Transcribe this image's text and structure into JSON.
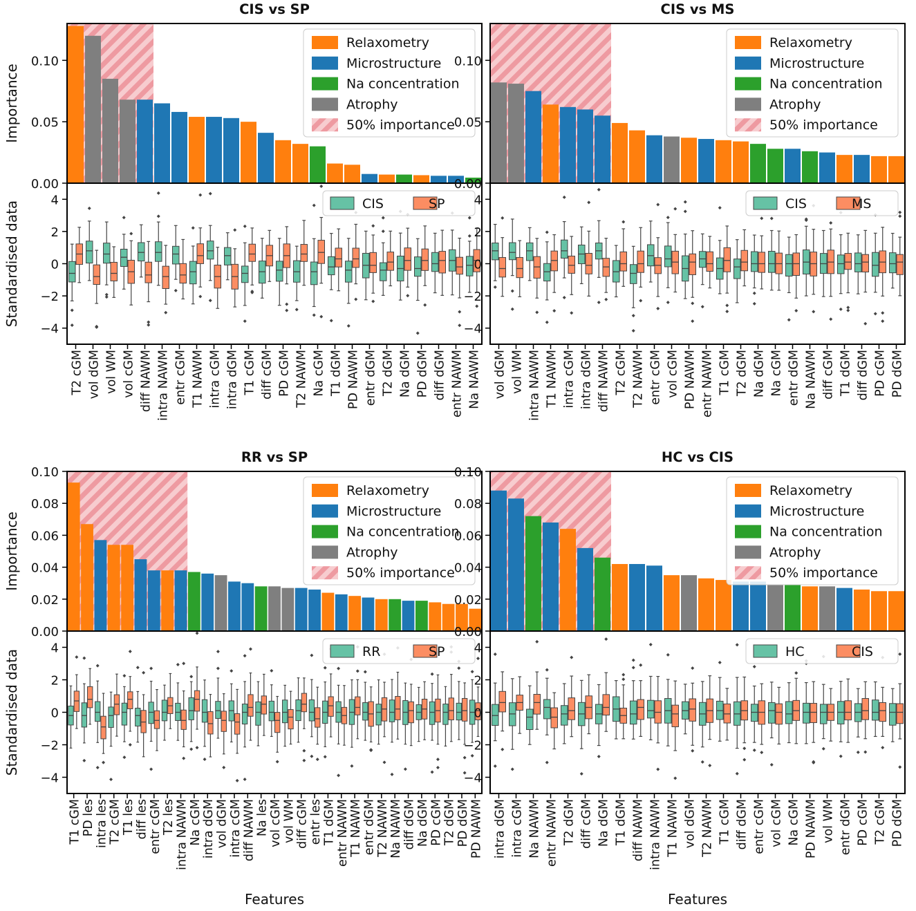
{
  "colors": {
    "Relaxometry": "#ff7f0e",
    "Microstructure": "#1f77b4",
    "Na concentration": "#2ca02c",
    "Atrophy": "#7f7f7f",
    "hatch": "#f08080",
    "box_group_a": "#66c2a5",
    "box_group_b": "#fc8d62"
  },
  "category_codes": {
    "R": "Relaxometry",
    "M": "Microstructure",
    "N": "Na concentration",
    "A": "Atrophy"
  },
  "legend_labels": [
    "Relaxometry",
    "Microstructure",
    "Na concentration",
    "Atrophy",
    "50% importance"
  ],
  "importance_ylabel": "Importance",
  "box_ylabel": "Standardised data",
  "xlabel": "Features",
  "chart_data": [
    {
      "type": "bar",
      "title": "CIS vs SP",
      "groups": [
        "CIS",
        "SP"
      ],
      "ylim": [
        0,
        0.13
      ],
      "yticks": [
        0.0,
        0.05,
        0.1
      ],
      "categories": [
        "T2 cGM",
        "vol dGM",
        "vol WM",
        "vol cGM",
        "diff NAWM",
        "intra NAWM",
        "entr cGM",
        "T1 NAWM",
        "intra cGM",
        "intra dGM",
        "T1 cGM",
        "diff cGM",
        "PD cGM",
        "T2 NAWM",
        "Na cGM",
        "T1 dGM",
        "PD NAWM",
        "entr dGM",
        "T2 dGM",
        "Na dGM",
        "PD dGM",
        "diff dGM",
        "entr NAWM",
        "Na NAWM"
      ],
      "feature_types": "RAAAMMMRMMRMRRNRRMRNRMMN",
      "values": [
        0.128,
        0.12,
        0.085,
        0.068,
        0.068,
        0.065,
        0.058,
        0.054,
        0.054,
        0.053,
        0.05,
        0.041,
        0.035,
        0.032,
        0.03,
        0.016,
        0.015,
        0.0075,
        0.007,
        0.007,
        0.0065,
        0.006,
        0.006,
        0.0045
      ],
      "half_importance_features": 5,
      "box_ylim": [
        -5,
        5
      ],
      "box_yticks": [
        -4,
        -2,
        0,
        2,
        4
      ],
      "medians_a": [
        -0.6,
        0.8,
        0.6,
        0.4,
        0.7,
        0.7,
        0.6,
        -0.5,
        0.8,
        0.5,
        -0.6,
        -0.5,
        -0.4,
        -0.5,
        -0.5,
        -0.2,
        -0.4,
        -0.1,
        -0.4,
        -0.3,
        -0.3,
        0.0,
        0.2,
        -0.1
      ],
      "medians_b": [
        0.6,
        -0.8,
        -0.6,
        -0.5,
        -0.7,
        -0.8,
        -0.7,
        0.5,
        -0.8,
        -0.8,
        0.6,
        0.5,
        0.5,
        0.6,
        0.7,
        0.3,
        0.3,
        -0.1,
        0.1,
        0.2,
        0.2,
        0.2,
        -0.2,
        0.2
      ]
    },
    {
      "type": "bar",
      "title": "CIS vs MS",
      "groups": [
        "CIS",
        "MS"
      ],
      "ylim": [
        0,
        0.13
      ],
      "yticks": [
        0.0,
        0.05,
        0.1
      ],
      "categories": [
        "vol dGM",
        "vol WM",
        "intra NAWM",
        "T1 NAWM",
        "intra cGM",
        "intra dGM",
        "diff NAWM",
        "T2 cGM",
        "T2 NAWM",
        "entr cGM",
        "vol cGM",
        "PD NAWM",
        "entr NAWM",
        "T1 cGM",
        "T2 dGM",
        "Na dGM",
        "Na cGM",
        "entr dGM",
        "Na NAWM",
        "diff cGM",
        "T1 dGM",
        "diff dGM",
        "PD cGM",
        "PD dGM"
      ],
      "feature_types": "AAMRMMMRRMARMRRNNMNMRMRR",
      "values": [
        0.082,
        0.081,
        0.075,
        0.064,
        0.062,
        0.06,
        0.055,
        0.049,
        0.043,
        0.039,
        0.038,
        0.037,
        0.036,
        0.035,
        0.034,
        0.032,
        0.028,
        0.028,
        0.026,
        0.025,
        0.023,
        0.023,
        0.022,
        0.022
      ],
      "half_importance_features": 7,
      "box_ylim": [
        -5,
        5
      ],
      "box_yticks": [
        -4,
        -2,
        0,
        2,
        4
      ],
      "medians_a": [
        0.8,
        0.7,
        0.8,
        -0.5,
        0.8,
        0.6,
        0.8,
        -0.5,
        -0.6,
        0.5,
        0.3,
        -0.3,
        0.3,
        -0.3,
        -0.2,
        0.0,
        0.0,
        0.0,
        0.1,
        0.0,
        0.0,
        0.0,
        -0.1,
        0.0
      ],
      "medians_b": [
        -0.3,
        -0.3,
        -0.2,
        0.2,
        -0.1,
        -0.1,
        -0.2,
        0.0,
        0.0,
        -0.1,
        0.1,
        0.1,
        0.0,
        0.2,
        0.1,
        0.0,
        0.0,
        0.0,
        0.0,
        0.1,
        0.1,
        0.1,
        0.1,
        0.1
      ]
    },
    {
      "type": "bar",
      "title": "RR vs SP",
      "groups": [
        "RR",
        "SP"
      ],
      "ylim": [
        0,
        0.1
      ],
      "yticks": [
        0.0,
        0.02,
        0.04,
        0.06,
        0.08,
        0.1
      ],
      "categories": [
        "T1 cGM",
        "PD les",
        "intra les",
        "T2 cGM",
        "T1 les",
        "diff les",
        "entr cGM",
        "T2 les",
        "intra NAWM",
        "Na cGM",
        "intra dGM",
        "vol dGM",
        "intra cGM",
        "diff NAWM",
        "Na les",
        "vol cGM",
        "vol WM",
        "diff cGM",
        "entr les",
        "T1 dGM",
        "entr NAWM",
        "T1 NAWM",
        "entr dGM",
        "T2 NAWM",
        "Na NAWM",
        "diff dGM",
        "Na dGM",
        "PD cGM",
        "T2 dGM",
        "PD dGM",
        "PD NAWM"
      ],
      "feature_types": "RRMRRMMRMNMAMMNAAMMRMRMRNMNRRRR",
      "values": [
        0.093,
        0.067,
        0.057,
        0.054,
        0.054,
        0.045,
        0.038,
        0.038,
        0.038,
        0.037,
        0.036,
        0.035,
        0.031,
        0.03,
        0.028,
        0.028,
        0.027,
        0.027,
        0.026,
        0.024,
        0.023,
        0.022,
        0.021,
        0.02,
        0.02,
        0.019,
        0.019,
        0.018,
        0.017,
        0.017,
        0.014
      ],
      "half_importance_features": 9,
      "box_ylim": [
        -5,
        5
      ],
      "box_yticks": [
        -4,
        -2,
        0,
        2,
        4
      ],
      "medians_a": [
        -0.2,
        -0.2,
        0.0,
        -0.2,
        0.0,
        -0.2,
        0.0,
        0.0,
        0.0,
        0.1,
        0.0,
        0.1,
        0.1,
        0.0,
        0.0,
        0.0,
        0.0,
        0.1,
        0.0,
        0.0,
        0.0,
        0.0,
        0.0,
        0.0,
        0.0,
        0.0,
        0.0,
        0.0,
        0.0,
        0.0,
        0.0
      ],
      "medians_b": [
        0.7,
        0.8,
        -0.9,
        0.5,
        0.8,
        -0.6,
        -0.5,
        0.4,
        -0.5,
        0.8,
        -0.7,
        -0.5,
        -0.6,
        0.3,
        0.5,
        -0.5,
        -0.3,
        0.5,
        -0.4,
        0.4,
        -0.2,
        0.3,
        -0.1,
        0.2,
        0.2,
        0.1,
        0.2,
        0.1,
        0.1,
        0.1,
        0.1
      ]
    },
    {
      "type": "bar",
      "title": "HC vs CIS",
      "groups": [
        "HC",
        "CIS"
      ],
      "ylim": [
        0,
        0.1
      ],
      "yticks": [
        0.0,
        0.02,
        0.04,
        0.06,
        0.08,
        0.1
      ],
      "categories": [
        "intra dGM",
        "intra cGM",
        "Na NAWM",
        "entr NAWM",
        "T2 dGM",
        "diff cGM",
        "Na dGM",
        "T1 dGM",
        "diff NAWM",
        "intra NAWM",
        "T1 NAWM",
        "vol dGM",
        "T2 NAWM",
        "T1 cGM",
        "diff dGM",
        "entr cGM",
        "vol cGM",
        "Na cGM",
        "PD NAWM",
        "vol WM",
        "entr dGM",
        "PD cGM",
        "T2 cGM",
        "PD dGM"
      ],
      "feature_types": "MMNMRMNRMMRARRMMANRAMRRR",
      "values": [
        0.088,
        0.083,
        0.072,
        0.068,
        0.064,
        0.052,
        0.046,
        0.042,
        0.042,
        0.041,
        0.035,
        0.035,
        0.033,
        0.032,
        0.031,
        0.031,
        0.029,
        0.029,
        0.028,
        0.028,
        0.027,
        0.026,
        0.025,
        0.025
      ],
      "half_importance_features": 7,
      "box_ylim": [
        -5,
        5
      ],
      "box_yticks": [
        -4,
        -2,
        0,
        2,
        4
      ],
      "medians_a": [
        -0.2,
        -0.1,
        -0.3,
        0.3,
        -0.1,
        -0.1,
        -0.1,
        0.2,
        -0.1,
        0.1,
        0.1,
        0.1,
        -0.1,
        0.1,
        -0.1,
        0.0,
        0.1,
        -0.1,
        0.0,
        0.0,
        0.0,
        0.0,
        0.0,
        0.0
      ],
      "medians_b": [
        0.6,
        0.6,
        0.6,
        -0.3,
        0.1,
        0.3,
        0.3,
        -0.2,
        0.3,
        0.0,
        -0.1,
        0.2,
        0.1,
        -0.1,
        0.1,
        0.0,
        0.0,
        0.1,
        0.0,
        0.0,
        0.0,
        0.1,
        0.1,
        0.0
      ]
    }
  ]
}
